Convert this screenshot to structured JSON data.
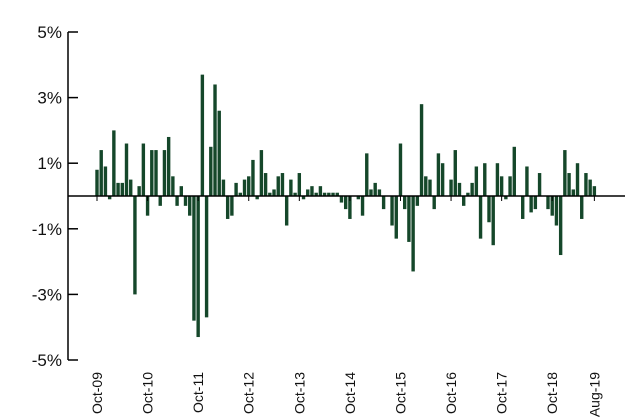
{
  "chart_data": {
    "type": "bar",
    "categories": [
      "Oct-09",
      null,
      null,
      null,
      null,
      null,
      null,
      null,
      null,
      null,
      null,
      null,
      "Oct-10",
      null,
      null,
      null,
      null,
      null,
      null,
      null,
      null,
      null,
      null,
      null,
      "Oct-11",
      null,
      null,
      null,
      null,
      null,
      null,
      null,
      null,
      null,
      null,
      null,
      "Oct-12",
      null,
      null,
      null,
      null,
      null,
      null,
      null,
      null,
      null,
      null,
      null,
      "Oct-13",
      null,
      null,
      null,
      null,
      null,
      null,
      null,
      null,
      null,
      null,
      null,
      "Oct-14",
      null,
      null,
      null,
      null,
      null,
      null,
      null,
      null,
      null,
      null,
      null,
      "Oct-15",
      null,
      null,
      null,
      null,
      null,
      null,
      null,
      null,
      null,
      null,
      null,
      "Oct-16",
      null,
      null,
      null,
      null,
      null,
      null,
      null,
      null,
      null,
      null,
      null,
      "Oct-17",
      null,
      null,
      null,
      null,
      null,
      null,
      null,
      null,
      null,
      null,
      null,
      "Oct-18",
      null,
      null,
      null,
      null,
      null,
      null,
      null,
      null,
      null,
      "Aug-19"
    ],
    "values": [
      0.8,
      1.4,
      0.9,
      -0.1,
      2.0,
      0.4,
      0.4,
      1.6,
      0.5,
      -3.0,
      0.3,
      1.6,
      -0.6,
      1.4,
      1.4,
      -0.3,
      1.4,
      1.8,
      0.6,
      -0.3,
      0.3,
      -0.3,
      -0.6,
      -3.8,
      -4.3,
      3.7,
      -3.7,
      1.5,
      3.4,
      2.6,
      0.5,
      -0.7,
      -0.6,
      0.4,
      0.1,
      0.5,
      0.6,
      1.1,
      -0.1,
      1.4,
      0.7,
      0.1,
      0.2,
      0.6,
      0.7,
      -0.9,
      0.5,
      0.1,
      0.7,
      -0.1,
      0.2,
      0.3,
      0.1,
      0.3,
      0.1,
      0.1,
      0.1,
      0.1,
      -0.2,
      -0.4,
      -0.7,
      0.0,
      -0.1,
      -0.6,
      1.3,
      0.2,
      0.4,
      0.2,
      -0.4,
      0.0,
      -0.9,
      -1.3,
      1.6,
      -0.4,
      -1.4,
      -2.3,
      -0.3,
      2.8,
      0.6,
      0.5,
      -0.4,
      1.3,
      1.0,
      0.0,
      0.5,
      1.4,
      0.4,
      -0.3,
      0.1,
      0.4,
      0.9,
      -1.3,
      1.0,
      -0.8,
      -1.5,
      1.0,
      0.6,
      -0.1,
      0.6,
      1.5,
      0.0,
      -0.7,
      0.9,
      -0.5,
      -0.4,
      0.7,
      0.0,
      -0.4,
      -0.6,
      -0.9,
      -1.8,
      1.4,
      0.7,
      0.2,
      1.0,
      -0.7,
      0.7,
      0.5,
      0.3
    ],
    "color": "#15472a",
    "ylim": [
      -5,
      5
    ],
    "yticks": [
      {
        "value": 5,
        "label": "5%"
      },
      {
        "value": 3,
        "label": "3%"
      },
      {
        "value": 1,
        "label": "1%"
      },
      {
        "value": -1,
        "label": "-1%"
      },
      {
        "value": -3,
        "label": "-3%"
      },
      {
        "value": -5,
        "label": "-5%"
      }
    ]
  }
}
